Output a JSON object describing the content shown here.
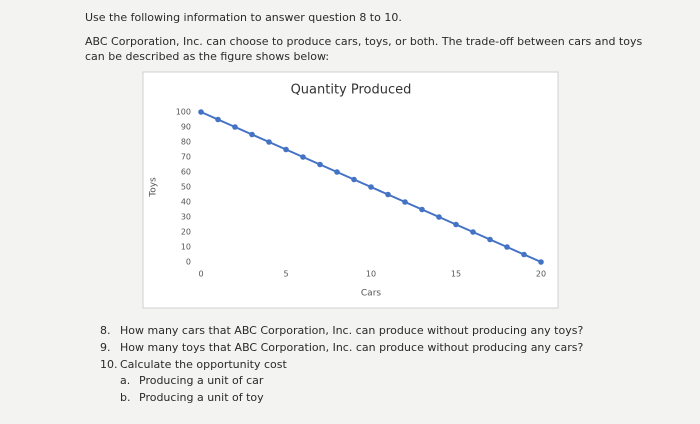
{
  "intro": "Use the following information to answer question 8 to 10.",
  "description": [
    "ABC Corporation, Inc. can choose to produce cars, toys, or both. The trade-off between cars and toys",
    "can be described as the figure shows below:"
  ],
  "chart_data": {
    "type": "line",
    "title": "Quantity Produced",
    "x_label": "Cars",
    "y_label": "Toys",
    "x": [
      0,
      1,
      2,
      3,
      4,
      5,
      6,
      7,
      8,
      9,
      10,
      11,
      12,
      13,
      14,
      15,
      16,
      17,
      18,
      19,
      20
    ],
    "values": [
      100,
      95,
      90,
      85,
      80,
      75,
      70,
      65,
      60,
      55,
      50,
      45,
      40,
      35,
      30,
      25,
      20,
      15,
      10,
      5,
      0
    ],
    "color": "#4472c4",
    "xlim": [
      0,
      20
    ],
    "ylim": [
      0,
      100
    ],
    "xticks": [
      0,
      5,
      10,
      15,
      20
    ],
    "yticks": [
      0,
      10,
      20,
      30,
      40,
      50,
      60,
      70,
      80,
      90,
      100
    ],
    "grid": false
  },
  "questions": [
    {
      "number": "8.",
      "text": "How many cars that ABC Corporation, Inc. can produce without producing any toys?"
    },
    {
      "number": "9.",
      "text": "How many toys that ABC Corporation, Inc. can produce without producing any cars?"
    },
    {
      "number": "10.",
      "text": "Calculate the opportunity cost",
      "items": [
        {
          "letter": "a.",
          "text": "Producing a unit of car"
        },
        {
          "letter": "b.",
          "text": "Producing a unit of toy"
        }
      ]
    }
  ]
}
